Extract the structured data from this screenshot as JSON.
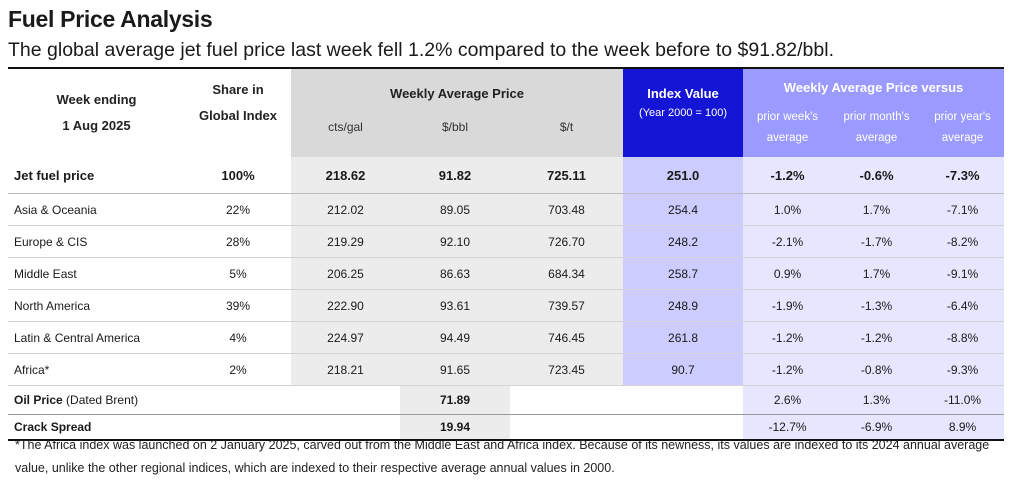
{
  "title": "Fuel Price Analysis",
  "subtitle": "The global average jet fuel price last week fell 1.2% compared to the week before to $91.82/bbl.",
  "headers": {
    "week_ending_line1": "Week ending",
    "week_ending_line2": "1 Aug 2025",
    "share_line1": "Share in",
    "share_line2": "Global Index",
    "weekly_avg": "Weekly Average Price",
    "unit_cts": "cts/gal",
    "unit_bbl": "$/bbl",
    "unit_t": "$/t",
    "index_value": "Index Value",
    "index_base": "(Year 2000 = 100)",
    "versus": "Weekly Average Price versus",
    "prior_week_1": "prior week's",
    "prior_week_2": "average",
    "prior_month_1": "prior month's",
    "prior_month_2": "average",
    "prior_year_1": "prior year's",
    "prior_year_2": "average"
  },
  "jet": {
    "label": "Jet fuel price",
    "share": "100%",
    "cts": "218.62",
    "bbl": "91.82",
    "t": "725.11",
    "index": "251.0",
    "pw": "-1.2%",
    "pm": "-0.6%",
    "py": "-7.3%"
  },
  "regions": [
    {
      "label": "Asia & Oceania",
      "share": "22%",
      "cts": "212.02",
      "bbl": "89.05",
      "t": "703.48",
      "index": "254.4",
      "pw": "1.0%",
      "pm": "1.7%",
      "py": "-7.1%"
    },
    {
      "label": "Europe & CIS",
      "share": "28%",
      "cts": "219.29",
      "bbl": "92.10",
      "t": "726.70",
      "index": "248.2",
      "pw": "-2.1%",
      "pm": "-1.7%",
      "py": "-8.2%"
    },
    {
      "label": "Middle East",
      "share": "5%",
      "cts": "206.25",
      "bbl": "86.63",
      "t": "684.34",
      "index": "258.7",
      "pw": "0.9%",
      "pm": "1.7%",
      "py": "-9.1%"
    },
    {
      "label": "North America",
      "share": "39%",
      "cts": "222.90",
      "bbl": "93.61",
      "t": "739.57",
      "index": "248.9",
      "pw": "-1.9%",
      "pm": "-1.3%",
      "py": "-6.4%"
    },
    {
      "label": "Latin & Central America",
      "share": "4%",
      "cts": "224.97",
      "bbl": "94.49",
      "t": "746.45",
      "index": "261.8",
      "pw": "-1.2%",
      "pm": "-1.2%",
      "py": "-8.8%"
    },
    {
      "label": "Africa*",
      "share": "2%",
      "cts": "218.21",
      "bbl": "91.65",
      "t": "723.45",
      "index": "90.7",
      "pw": "-1.2%",
      "pm": "-0.8%",
      "py": "-9.3%"
    }
  ],
  "oil": {
    "label_bold": "Oil Price",
    "label_rest": " (Dated Brent)",
    "bbl": "71.89",
    "pw": "2.6%",
    "pm": "1.3%",
    "py": "-11.0%"
  },
  "crack": {
    "label": "Crack Spread",
    "bbl": "19.94",
    "pw": "-12.7%",
    "pm": "-6.9%",
    "py": "8.9%"
  },
  "footnote": "*The Africa index was launched on 2 January 2025, carved out from the Middle East and Africa index. Because of its newness, its values are indexed  to its 2024 annual average value, unlike the other regional indices, which are indexed to their respective average annual values in 2000."
}
